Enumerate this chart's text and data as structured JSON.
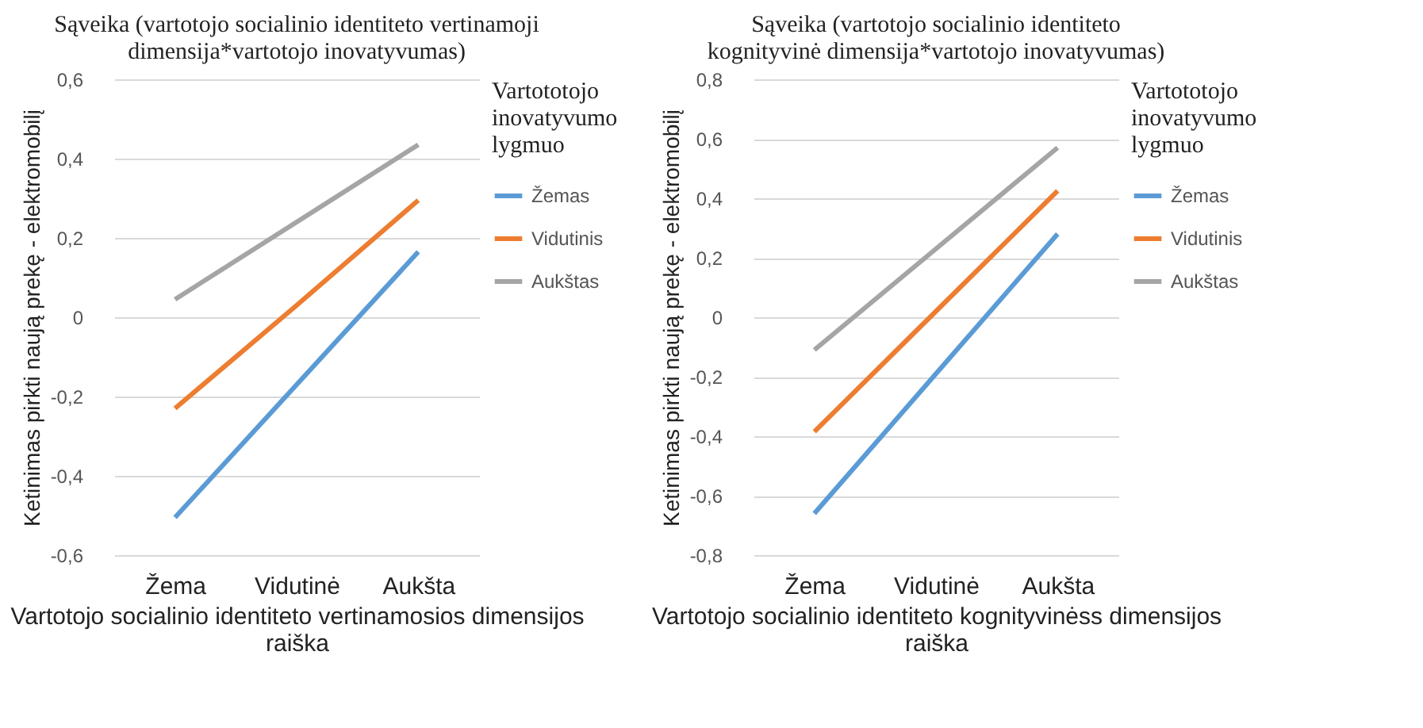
{
  "chart_data": [
    {
      "type": "line",
      "title": "Sąveika (vartotojo socialinio identiteto vertinamoji\ndimensija*vartotojo inovatyvumas)",
      "xlabel": "Vartotojo socialinio identiteto vertinamosios dimensijos\nraiška",
      "ylabel": "Ketinimas pirkti naują prekę - elektromobilį",
      "legend_title": "Vartototojo\ninovatyvumo\nlygmuo",
      "categories": [
        "Žema",
        "Vidutinė",
        "Aukšta"
      ],
      "series": [
        {
          "name": "Žemas",
          "color": "#5b9bd5",
          "values": [
            -0.505,
            -0.17,
            0.165
          ]
        },
        {
          "name": "Vidutinis",
          "color": "#ed7d31",
          "values": [
            -0.23,
            0.03,
            0.295
          ]
        },
        {
          "name": "Aukštas",
          "color": "#a5a5a5",
          "values": [
            0.045,
            0.24,
            0.435
          ]
        }
      ],
      "ylim": [
        -0.6,
        0.6
      ],
      "yticks": [
        {
          "value": -0.6,
          "label": "-0,6"
        },
        {
          "value": -0.4,
          "label": "-0,4"
        },
        {
          "value": -0.2,
          "label": "-0,2"
        },
        0,
        {
          "value": 0.2,
          "label": "0,2"
        },
        {
          "value": 0.4,
          "label": "0,4"
        },
        {
          "value": 0.6,
          "label": "0,6"
        }
      ],
      "grid": "y",
      "legend": "right"
    },
    {
      "type": "line",
      "title": "Sąveika (vartotojo socialinio identiteto\nkognityvinė dimensija*vartotojo inovatyvumas)",
      "xlabel": "Vartotojo socialinio identiteto kognityvinėss dimensijos\nraiška",
      "ylabel": "Ketinimas pirkti naują prekę - elektromobilį",
      "legend_title": "Vartototojo\ninovatyvumo\nlygmuo",
      "categories": [
        "Žema",
        "Vidutinė",
        "Aukšta"
      ],
      "series": [
        {
          "name": "Žemas",
          "color": "#5b9bd5",
          "values": [
            -0.66,
            -0.19,
            0.28
          ]
        },
        {
          "name": "Vidutinis",
          "color": "#ed7d31",
          "values": [
            -0.385,
            0.02,
            0.425
          ]
        },
        {
          "name": "Aukštas",
          "color": "#a5a5a5",
          "values": [
            -0.11,
            0.23,
            0.57
          ]
        }
      ],
      "ylim": [
        -0.8,
        0.8
      ],
      "yticks": [
        {
          "value": -0.8,
          "label": "-0,8"
        },
        {
          "value": -0.6,
          "label": "-0,6"
        },
        {
          "value": -0.4,
          "label": "-0,4"
        },
        {
          "value": -0.2,
          "label": "-0,2"
        },
        0,
        {
          "value": 0.2,
          "label": "0,2"
        },
        {
          "value": 0.4,
          "label": "0,4"
        },
        {
          "value": 0.6,
          "label": "0,6"
        },
        {
          "value": 0.8,
          "label": "0,8"
        }
      ],
      "grid": "y",
      "legend": "right"
    }
  ]
}
